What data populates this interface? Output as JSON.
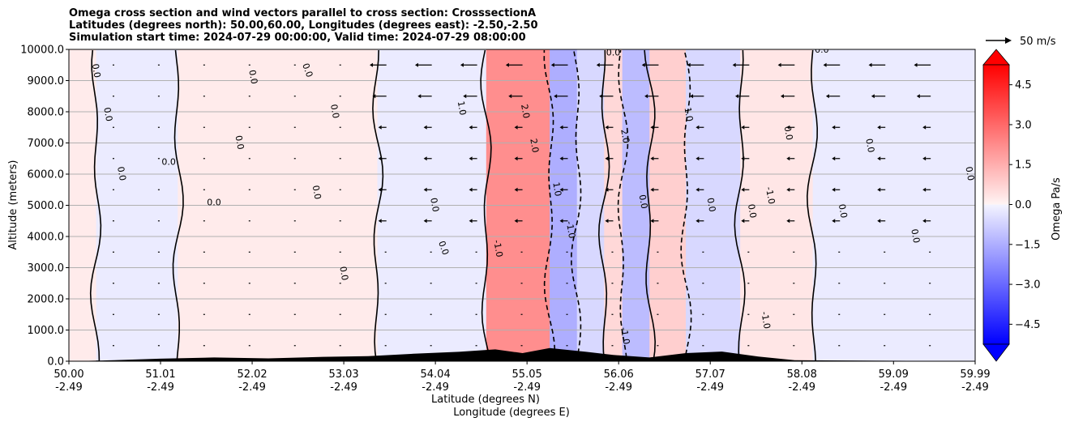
{
  "header": {
    "title_line1": "Omega cross section and wind vectors parallel to cross section: CrosssectionA",
    "title_line2": "Latitudes (degrees north): 50.00,60.00, Longitudes (degrees east): -2.50,-2.50",
    "title_line3": "Simulation start time: 2024-07-29 00:00:00, Valid time: 2024-07-29 08:00:00"
  },
  "colors": {
    "neg_strong": "#0000ff",
    "neg_weak": "#eef0ff",
    "pos_weak": "#fff0f0",
    "pos_strong": "#ff0000",
    "terrain": "#000000",
    "grid": "#b0b0b0"
  },
  "chart_data": {
    "type": "heatmap",
    "title": "Omega cross section and wind vectors parallel to cross section: CrosssectionA",
    "xlabel_line1": "Latitude (degrees N)",
    "xlabel_line2": "Longitude (degrees E)",
    "ylabel": "Altitude (meters)",
    "ylim": [
      0,
      10000
    ],
    "xlim": [
      50.0,
      59.99
    ],
    "y_ticks": [
      0,
      1000,
      2000,
      3000,
      4000,
      5000,
      6000,
      7000,
      8000,
      9000,
      10000
    ],
    "y_tick_labels": [
      "0.0",
      "1000.0",
      "2000.0",
      "3000.0",
      "4000.0",
      "5000.0",
      "6000.0",
      "7000.0",
      "8000.0",
      "9000.0",
      "10000.0"
    ],
    "x_ticks": [
      {
        "lat": 50.0,
        "lat_label": "50.00",
        "lon_label": "-2.49"
      },
      {
        "lat": 51.01,
        "lat_label": "51.01",
        "lon_label": "-2.49"
      },
      {
        "lat": 52.02,
        "lat_label": "52.02",
        "lon_label": "-2.49"
      },
      {
        "lat": 53.03,
        "lat_label": "53.03",
        "lon_label": "-2.49"
      },
      {
        "lat": 54.04,
        "lat_label": "54.04",
        "lon_label": "-2.49"
      },
      {
        "lat": 55.05,
        "lat_label": "55.05",
        "lon_label": "-2.49"
      },
      {
        "lat": 56.06,
        "lat_label": "56.06",
        "lon_label": "-2.49"
      },
      {
        "lat": 57.07,
        "lat_label": "57.07",
        "lon_label": "-2.49"
      },
      {
        "lat": 58.08,
        "lat_label": "58.08",
        "lon_label": "-2.49"
      },
      {
        "lat": 59.09,
        "lat_label": "59.09",
        "lon_label": "-2.49"
      },
      {
        "lat": 59.99,
        "lat_label": "59.99",
        "lon_label": "-2.49"
      }
    ],
    "grid": true,
    "colorbar": {
      "label": "Omega Pa/s",
      "range": [
        -5.25,
        5.25
      ],
      "ticks": [
        4.5,
        3.0,
        1.5,
        0.0,
        -1.5,
        -3.0,
        -4.5
      ],
      "tick_labels": [
        "4.5",
        "3.0",
        "1.5",
        "0.0",
        "−1.5",
        "−3.0",
        "−4.5"
      ],
      "extend": "both"
    },
    "quiver_key": {
      "label": "50 m/s",
      "speed": 50
    },
    "omega_bands": [
      {
        "lat_start": 50.0,
        "lat_end": 50.3,
        "omega": 0.2
      },
      {
        "lat_start": 50.3,
        "lat_end": 51.2,
        "omega": -0.2
      },
      {
        "lat_start": 51.2,
        "lat_end": 53.4,
        "omega": 0.2
      },
      {
        "lat_start": 53.4,
        "lat_end": 54.6,
        "omega": -0.2
      },
      {
        "lat_start": 54.6,
        "lat_end": 55.3,
        "omega": 2.2
      },
      {
        "lat_start": 55.3,
        "lat_end": 55.6,
        "omega": -1.5
      },
      {
        "lat_start": 55.6,
        "lat_end": 55.9,
        "omega": -0.6
      },
      {
        "lat_start": 55.9,
        "lat_end": 56.1,
        "omega": 0.6
      },
      {
        "lat_start": 56.1,
        "lat_end": 56.4,
        "omega": -1.2
      },
      {
        "lat_start": 56.4,
        "lat_end": 56.8,
        "omega": 0.8
      },
      {
        "lat_start": 56.8,
        "lat_end": 57.4,
        "omega": -0.6
      },
      {
        "lat_start": 57.4,
        "lat_end": 58.2,
        "omega": 0.3
      },
      {
        "lat_start": 58.2,
        "lat_end": 59.99,
        "omega": -0.2
      }
    ],
    "contour_labels": [
      {
        "lat": 50.27,
        "alt": 9300,
        "text": "0.0",
        "rot": 80
      },
      {
        "lat": 50.4,
        "alt": 7900,
        "text": "0.0",
        "rot": 80
      },
      {
        "lat": 50.55,
        "alt": 6000,
        "text": "0.0",
        "rot": 80
      },
      {
        "lat": 51.1,
        "alt": 6300,
        "text": "0.0",
        "rot": 0
      },
      {
        "lat": 51.6,
        "alt": 5000,
        "text": "0.0",
        "rot": 0
      },
      {
        "lat": 52.0,
        "alt": 9100,
        "text": "0.0",
        "rot": 80
      },
      {
        "lat": 51.85,
        "alt": 7000,
        "text": "0.0",
        "rot": 80
      },
      {
        "lat": 52.6,
        "alt": 9300,
        "text": "0.0",
        "rot": 70
      },
      {
        "lat": 52.9,
        "alt": 8000,
        "text": "0.0",
        "rot": 80
      },
      {
        "lat": 52.7,
        "alt": 5400,
        "text": "0.0",
        "rot": 80
      },
      {
        "lat": 53.0,
        "alt": 2800,
        "text": "0.0",
        "rot": 80
      },
      {
        "lat": 54.0,
        "alt": 5000,
        "text": "0.0",
        "rot": 80
      },
      {
        "lat": 54.1,
        "alt": 3600,
        "text": "0.0",
        "rot": 70
      },
      {
        "lat": 54.3,
        "alt": 8100,
        "text": "1.0",
        "rot": 80
      },
      {
        "lat": 55.0,
        "alt": 8000,
        "text": "2.0",
        "rot": 80
      },
      {
        "lat": 55.1,
        "alt": 6900,
        "text": "2.0",
        "rot": 80
      },
      {
        "lat": 55.35,
        "alt": 5500,
        "text": "1.0",
        "rot": 80
      },
      {
        "lat": 55.5,
        "alt": 4200,
        "text": "-1.0",
        "rot": 80
      },
      {
        "lat": 54.7,
        "alt": 3600,
        "text": "-1.0",
        "rot": 80
      },
      {
        "lat": 56.1,
        "alt": 7200,
        "text": "2.0",
        "rot": 80
      },
      {
        "lat": 56.3,
        "alt": 5100,
        "text": "0.0",
        "rot": 80
      },
      {
        "lat": 56.8,
        "alt": 7900,
        "text": "1.0",
        "rot": 80
      },
      {
        "lat": 57.05,
        "alt": 5000,
        "text": "0.0",
        "rot": 80
      },
      {
        "lat": 57.5,
        "alt": 4800,
        "text": "0.0",
        "rot": 80
      },
      {
        "lat": 57.7,
        "alt": 5300,
        "text": "-1.0",
        "rot": 80
      },
      {
        "lat": 57.9,
        "alt": 7300,
        "text": "0.0",
        "rot": 80
      },
      {
        "lat": 58.5,
        "alt": 4800,
        "text": "0.0",
        "rot": 80
      },
      {
        "lat": 58.8,
        "alt": 6900,
        "text": "0.0",
        "rot": 80
      },
      {
        "lat": 59.3,
        "alt": 4000,
        "text": "0.0",
        "rot": 80
      },
      {
        "lat": 59.9,
        "alt": 6000,
        "text": "0.0",
        "rot": 80
      },
      {
        "lat": 56.0,
        "alt": 9800,
        "text": "0.0",
        "rot": 0
      },
      {
        "lat": 58.3,
        "alt": 9900,
        "text": "0.0",
        "rot": 0
      },
      {
        "lat": 56.1,
        "alt": 800,
        "text": "-1.0",
        "rot": 80
      },
      {
        "lat": 57.65,
        "alt": 1300,
        "text": "-1.0",
        "rot": 80
      }
    ],
    "terrain_profile": [
      {
        "lat": 50.0,
        "alt": 0
      },
      {
        "lat": 50.5,
        "alt": 30
      },
      {
        "lat": 51.0,
        "alt": 80
      },
      {
        "lat": 51.6,
        "alt": 120
      },
      {
        "lat": 52.2,
        "alt": 90
      },
      {
        "lat": 52.8,
        "alt": 140
      },
      {
        "lat": 53.3,
        "alt": 160
      },
      {
        "lat": 53.8,
        "alt": 240
      },
      {
        "lat": 54.3,
        "alt": 300
      },
      {
        "lat": 54.7,
        "alt": 380
      },
      {
        "lat": 55.0,
        "alt": 260
      },
      {
        "lat": 55.3,
        "alt": 420
      },
      {
        "lat": 55.7,
        "alt": 300
      },
      {
        "lat": 56.0,
        "alt": 200
      },
      {
        "lat": 56.4,
        "alt": 120
      },
      {
        "lat": 56.8,
        "alt": 260
      },
      {
        "lat": 57.2,
        "alt": 310
      },
      {
        "lat": 57.6,
        "alt": 150
      },
      {
        "lat": 58.0,
        "alt": 30
      },
      {
        "lat": 59.99,
        "alt": 0
      }
    ]
  }
}
